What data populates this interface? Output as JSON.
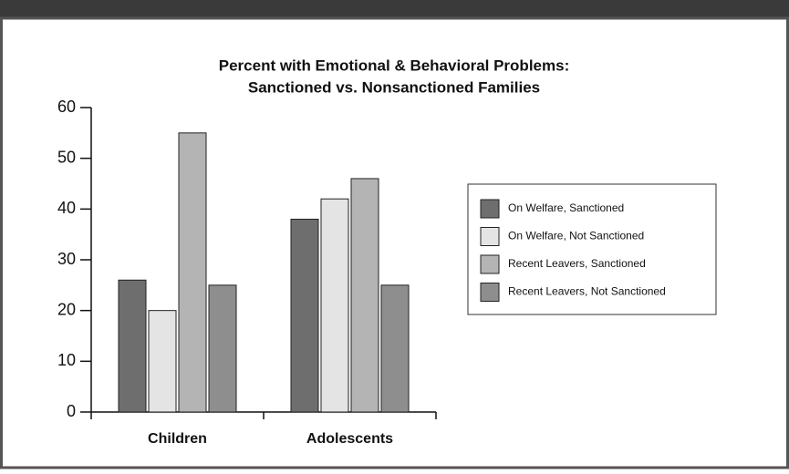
{
  "chart_data": {
    "type": "bar",
    "title_lines": [
      "Percent with Emotional & Behavioral Problems:",
      "Sanctioned vs. Nonsanctioned Families"
    ],
    "categories": [
      "Children",
      "Adolescents"
    ],
    "series": [
      {
        "name": "On Welfare, Sanctioned",
        "color": "#6e6e6e",
        "values": [
          26,
          38
        ]
      },
      {
        "name": "On Welfare, Not Sanctioned",
        "color": "#e4e4e4",
        "values": [
          20,
          42
        ]
      },
      {
        "name": "Recent Leavers, Sanctioned",
        "color": "#b4b4b4",
        "values": [
          55,
          46
        ]
      },
      {
        "name": "Recent Leavers, Not Sanctioned",
        "color": "#8e8e8e",
        "values": [
          25,
          25
        ]
      }
    ],
    "ylim": [
      0,
      60
    ],
    "yticks": [
      0,
      10,
      20,
      30,
      40,
      50,
      60
    ],
    "legend": "right"
  }
}
